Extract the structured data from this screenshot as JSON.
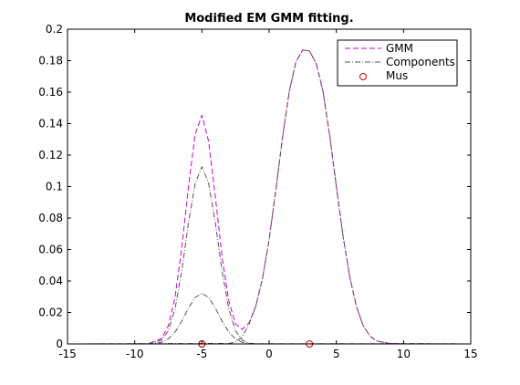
{
  "chart_data": {
    "type": "line",
    "title": "Modified EM GMM fitting.",
    "xlabel": "",
    "ylabel": "",
    "xlim": [
      -15,
      15
    ],
    "ylim": [
      0,
      0.2
    ],
    "x_ticks": [
      -15,
      -10,
      -5,
      0,
      5,
      10,
      15
    ],
    "y_ticks": [
      0,
      0.02,
      0.04,
      0.06,
      0.08,
      0.1,
      0.12,
      0.14,
      0.16,
      0.18,
      0.2
    ],
    "x_tick_labels": [
      "-15",
      "-10",
      "-5",
      "0",
      "5",
      "10",
      "15"
    ],
    "y_tick_labels": [
      "0",
      "0.02",
      "0.04",
      "0.06",
      "0.08",
      "0.1",
      "0.12",
      "0.14",
      "0.16",
      "0.18",
      "0.2"
    ],
    "grid": false,
    "legend_position": "top-right",
    "legend": [
      "GMM",
      "Components",
      "Mus"
    ],
    "series": [
      {
        "name": "GMM",
        "style": "dashed",
        "color": "#cc00cc",
        "x": [
          -15,
          -9,
          -8,
          -7.5,
          -7,
          -6.5,
          -6,
          -5.5,
          -5,
          -4.5,
          -4,
          -3.5,
          -3,
          -2.5,
          -2,
          -1.5,
          -1,
          -0.5,
          0,
          0.5,
          1,
          1.5,
          2,
          2.5,
          3,
          3.5,
          4,
          4.5,
          5,
          5.5,
          6,
          6.5,
          7,
          7.5,
          8,
          9,
          15
        ],
        "y": [
          0,
          0.0001,
          0.0034,
          0.0115,
          0.0297,
          0.0609,
          0.0999,
          0.1333,
          0.1453,
          0.1287,
          0.0936,
          0.0554,
          0.0273,
          0.0127,
          0.0093,
          0.0133,
          0.0238,
          0.0414,
          0.0663,
          0.0979,
          0.1314,
          0.1605,
          0.1794,
          0.1868,
          0.1862,
          0.1783,
          0.1609,
          0.1329,
          0.1001,
          0.0686,
          0.0426,
          0.0236,
          0.0116,
          0.005,
          0.0019,
          0.0002,
          0
        ]
      },
      {
        "name": "Components",
        "style": "dashdot",
        "color": "#555555",
        "x": [
          -15,
          -9,
          -8,
          -7.5,
          -7,
          -6.5,
          -6,
          -5.5,
          -5,
          -4.5,
          -4,
          -3.5,
          -3,
          -2.5,
          -2,
          -1.5,
          -1,
          15
        ],
        "y": [
          0,
          4e-05,
          0.0024,
          0.0083,
          0.0222,
          0.0463,
          0.0769,
          0.1021,
          0.1126,
          0.1021,
          0.0769,
          0.0463,
          0.0222,
          0.0083,
          0.0024,
          0.0005,
          0.0001,
          0
        ]
      },
      {
        "name": "",
        "style": "dashdot",
        "color": "#555555",
        "x": [
          -15,
          -9,
          -8,
          -7.5,
          -7,
          -6.5,
          -6,
          -5.5,
          -5,
          -4.5,
          -4,
          -3.5,
          -3,
          -2.5,
          -2,
          -1.5,
          -1,
          15
        ],
        "y": [
          0,
          4e-05,
          0.001,
          0.0032,
          0.0075,
          0.0145,
          0.0228,
          0.0295,
          0.0322,
          0.0295,
          0.0228,
          0.0145,
          0.0075,
          0.0032,
          0.001,
          0.0003,
          0.0001,
          0
        ]
      },
      {
        "name": "",
        "style": "dashdot",
        "color": "#555555",
        "x": [
          -15,
          -3,
          -2.5,
          -2,
          -1.5,
          -1,
          -0.5,
          0,
          0.5,
          1,
          1.5,
          2,
          2.5,
          3,
          3.5,
          4,
          4.5,
          5,
          5.5,
          6,
          6.5,
          7,
          7.5,
          8,
          9,
          15
        ],
        "y": [
          0,
          0.0003,
          0.0012,
          0.0045,
          0.0125,
          0.0236,
          0.0413,
          0.0663,
          0.0979,
          0.1314,
          0.1605,
          0.1794,
          0.1868,
          0.1862,
          0.1783,
          0.1609,
          0.1329,
          0.1001,
          0.0686,
          0.0426,
          0.0236,
          0.0116,
          0.005,
          0.0019,
          0.0002,
          0
        ]
      }
    ],
    "markers": {
      "name": "Mus",
      "shape": "circle",
      "color": "#cc0000",
      "x": [
        -5,
        -5,
        3
      ],
      "y": [
        0,
        0,
        0
      ]
    }
  }
}
